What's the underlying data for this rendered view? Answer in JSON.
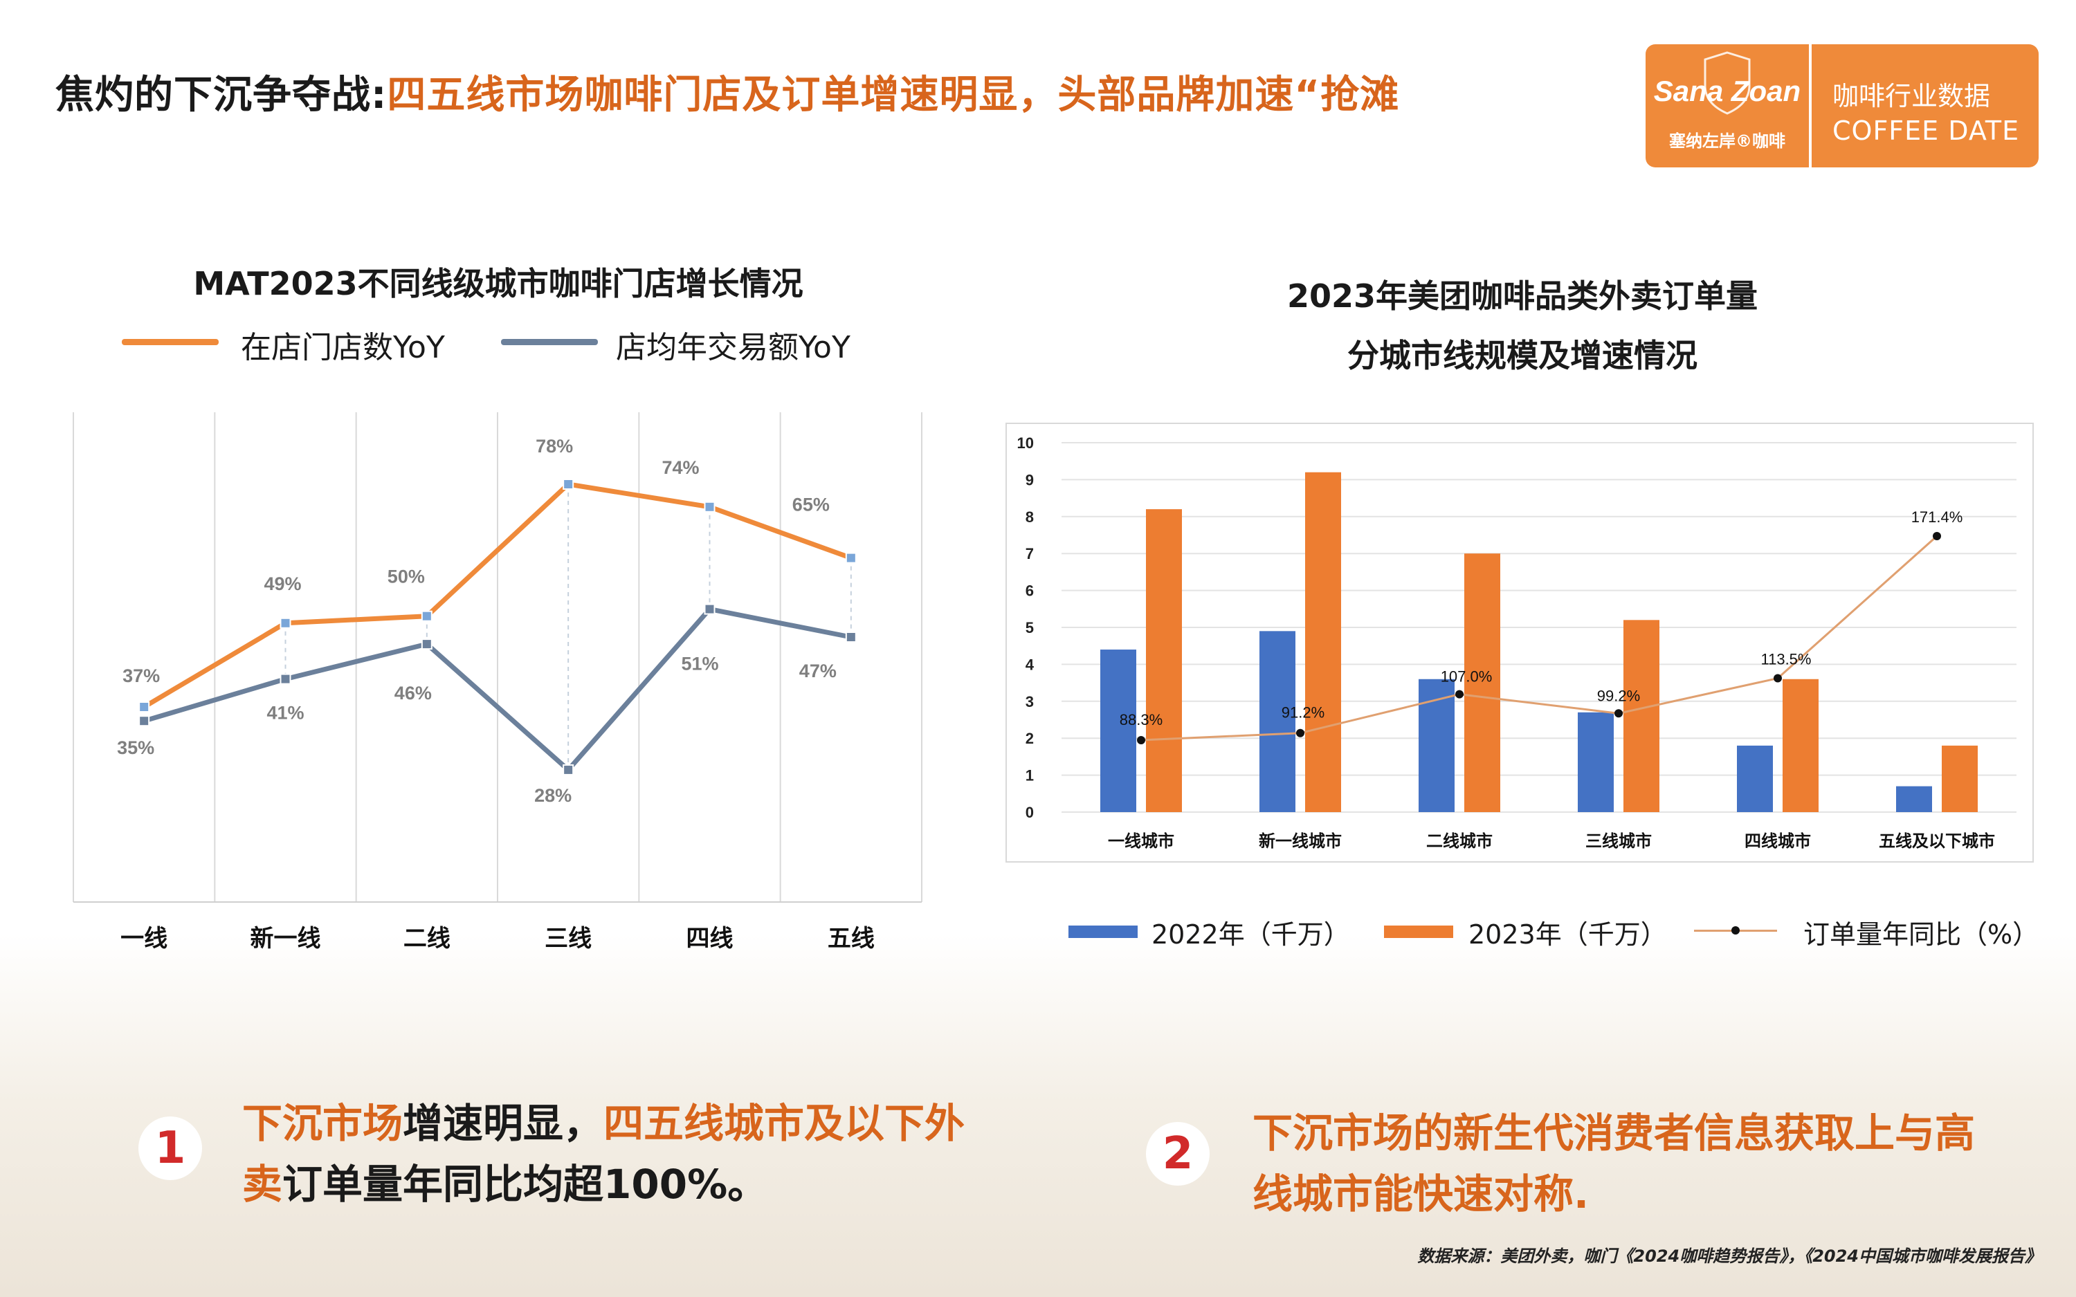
{
  "header": {
    "title_prefix": "焦灼的下沉争夺战:",
    "title_highlight": "四五线市场咖啡门店及订单增速明显，头部品牌加速“抢滩"
  },
  "brand": {
    "logo_text": "Sana Zoan",
    "logo_sub": "塞纳左岸®咖啡",
    "label_cn": "咖啡行业数据",
    "label_en": "COFFEE DATE",
    "color": "#ef8a3a"
  },
  "chart_left": {
    "title": "MAT2023不同线级城市咖啡门店增长情况",
    "legend": [
      "在店门店数YoY",
      "店均年交易额YoY"
    ]
  },
  "chart_right": {
    "title_line1": "2023年美团咖啡品类外卖订单量",
    "title_line2": "分城市线规模及增速情况",
    "legend": [
      "2022年（千万）",
      "2023年（千万）",
      "订单量年同比（%）"
    ]
  },
  "chart_data": [
    {
      "type": "line",
      "title": "MAT2023不同线级城市咖啡门店增长情况",
      "categories": [
        "一线",
        "新一线",
        "二线",
        "三线",
        "四线",
        "五线"
      ],
      "series": [
        {
          "name": "在店门店数YoY",
          "color": "#ef8a3a",
          "values": [
            37,
            49,
            50,
            78,
            74,
            65
          ],
          "labels": [
            "37%",
            "49%",
            "50%",
            "78%",
            "74%",
            "65%"
          ]
        },
        {
          "name": "店均年交易额YoY",
          "color": "#6b809b",
          "values": [
            35,
            41,
            46,
            28,
            51,
            47
          ],
          "labels": [
            "35%",
            "41%",
            "46%",
            "28%",
            "51%",
            "47%"
          ]
        }
      ],
      "ylim": [
        0,
        100
      ],
      "grid": "vertical"
    },
    {
      "type": "bar",
      "title": "2023年美团咖啡品类外卖订单量 分城市线规模及增速情况",
      "categories": [
        "一线城市",
        "新一线城市",
        "二线城市",
        "三线城市",
        "四线城市",
        "五线及以下城市"
      ],
      "series": [
        {
          "name": "2022年（千万）",
          "color": "#4472c4",
          "values": [
            4.4,
            4.9,
            3.6,
            2.7,
            1.8,
            0.7
          ]
        },
        {
          "name": "2023年（千万）",
          "color": "#ed7d31",
          "values": [
            8.2,
            9.2,
            7.0,
            5.2,
            3.6,
            1.8
          ]
        },
        {
          "name": "订单量年同比（%）",
          "type": "line",
          "color": "#e0a070",
          "values": [
            88.3,
            91.2,
            107.0,
            99.2,
            113.5,
            171.4
          ],
          "labels": [
            "88.3%",
            "91.2%",
            "107.0%",
            "99.2%",
            "113.5%",
            "171.4%"
          ]
        }
      ],
      "yticks": [
        "0",
        "1",
        "2",
        "3",
        "4",
        "5",
        "6",
        "7",
        "8",
        "9",
        "10"
      ],
      "ylim": [
        0,
        10
      ],
      "grid": "horizontal",
      "legend": "bottom"
    }
  ],
  "points": [
    {
      "num": "1",
      "hl1": "下沉市场",
      "t1": "增速明显，",
      "hl2": "四五线城市及以下外",
      "hl3": "卖",
      "t2": "订单量年同比均超100%。"
    },
    {
      "num": "2",
      "hl1": "下沉市场的新生代消费者信息获取上与高",
      "hl2": "线城市能快速对称."
    }
  ],
  "source": "数据来源：美团外卖，咖门《2024咖啡趋势报告》，《2024中国城市咖啡发展报告》"
}
